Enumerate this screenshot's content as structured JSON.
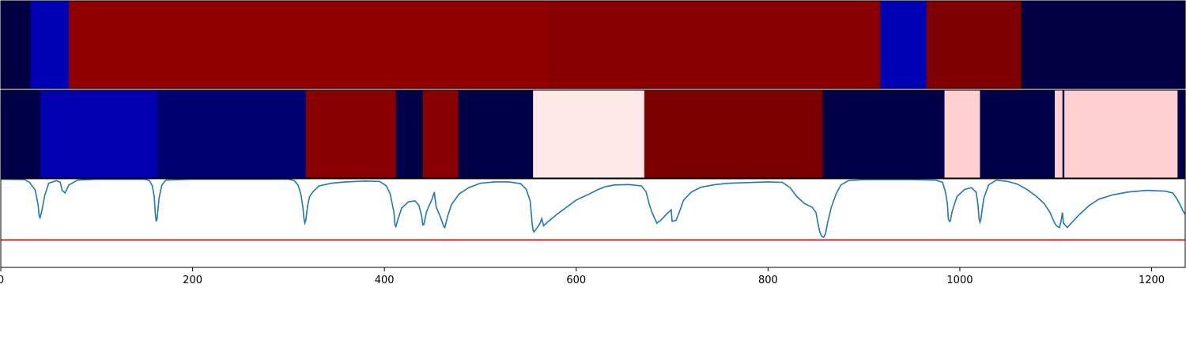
{
  "chart_data": [
    {
      "type": "heatmap",
      "panel": "top",
      "xlim": [
        0,
        1235
      ],
      "segments": [
        {
          "start": 0,
          "end": 31,
          "color": "#000043"
        },
        {
          "start": 31,
          "end": 71,
          "color": "#0000b4"
        },
        {
          "start": 71,
          "end": 570,
          "color": "#900000"
        },
        {
          "start": 570,
          "end": 917,
          "color": "#880000"
        },
        {
          "start": 917,
          "end": 965,
          "color": "#0000b4"
        },
        {
          "start": 965,
          "end": 1064,
          "color": "#7f0000"
        },
        {
          "start": 1064,
          "end": 1235,
          "color": "#000043"
        }
      ]
    },
    {
      "type": "heatmap",
      "panel": "middle",
      "xlim": [
        0,
        1235
      ],
      "segments": [
        {
          "start": 0,
          "end": 41,
          "color": "#000048"
        },
        {
          "start": 41,
          "end": 163,
          "color": "#0000b0"
        },
        {
          "start": 163,
          "end": 318,
          "color": "#000070"
        },
        {
          "start": 318,
          "end": 412,
          "color": "#880000"
        },
        {
          "start": 412,
          "end": 440,
          "color": "#000048"
        },
        {
          "start": 440,
          "end": 477,
          "color": "#880000"
        },
        {
          "start": 477,
          "end": 555,
          "color": "#000048"
        },
        {
          "start": 555,
          "end": 671,
          "color": "#ffe8e8"
        },
        {
          "start": 671,
          "end": 857,
          "color": "#7d0000"
        },
        {
          "start": 857,
          "end": 984,
          "color": "#000048"
        },
        {
          "start": 984,
          "end": 1021,
          "color": "#ffd0d0"
        },
        {
          "start": 1021,
          "end": 1099,
          "color": "#000048"
        },
        {
          "start": 1099,
          "end": 1107,
          "color": "#ffd0d0"
        },
        {
          "start": 1107,
          "end": 1109,
          "color": "#000048"
        },
        {
          "start": 1109,
          "end": 1227,
          "color": "#ffd0d0"
        },
        {
          "start": 1227,
          "end": 1235,
          "color": "#000048"
        }
      ]
    },
    {
      "type": "line",
      "panel": "bottom",
      "xlim": [
        0,
        1235
      ],
      "ylim": [
        0,
        1
      ],
      "xticks": [
        0,
        200,
        400,
        600,
        800,
        1000,
        1200
      ],
      "threshold": {
        "value": 0.31,
        "color": "#dd0000"
      },
      "series": [
        {
          "color": "#1f77b4",
          "points": [
            [
              0,
              0.995
            ],
            [
              25,
              0.99
            ],
            [
              30,
              0.96
            ],
            [
              36,
              0.87
            ],
            [
              39,
              0.7
            ],
            [
              40,
              0.58
            ],
            [
              41,
              0.56
            ],
            [
              43,
              0.65
            ],
            [
              46,
              0.82
            ],
            [
              50,
              0.95
            ],
            [
              58,
              0.98
            ],
            [
              62,
              0.96
            ],
            [
              64,
              0.87
            ],
            [
              67,
              0.84
            ],
            [
              71,
              0.93
            ],
            [
              80,
              0.985
            ],
            [
              100,
              0.995
            ],
            [
              150,
              0.995
            ],
            [
              155,
              0.98
            ],
            [
              158,
              0.92
            ],
            [
              160,
              0.8
            ],
            [
              161,
              0.62
            ],
            [
              162,
              0.52
            ],
            [
              163,
              0.55
            ],
            [
              165,
              0.78
            ],
            [
              168,
              0.93
            ],
            [
              172,
              0.985
            ],
            [
              200,
              0.995
            ],
            [
              300,
              0.995
            ],
            [
              306,
              0.98
            ],
            [
              310,
              0.93
            ],
            [
              313,
              0.82
            ],
            [
              315,
              0.68
            ],
            [
              316,
              0.56
            ],
            [
              317,
              0.5
            ],
            [
              318,
              0.53
            ],
            [
              320,
              0.7
            ],
            [
              322,
              0.8
            ],
            [
              326,
              0.86
            ],
            [
              332,
              0.92
            ],
            [
              345,
              0.95
            ],
            [
              360,
              0.965
            ],
            [
              380,
              0.975
            ],
            [
              395,
              0.97
            ],
            [
              402,
              0.92
            ],
            [
              406,
              0.83
            ],
            [
              410,
              0.62
            ],
            [
              411,
              0.48
            ],
            [
              412,
              0.46
            ],
            [
              414,
              0.54
            ],
            [
              418,
              0.67
            ],
            [
              425,
              0.74
            ],
            [
              432,
              0.75
            ],
            [
              436,
              0.7
            ],
            [
              439,
              0.57
            ],
            [
              440,
              0.48
            ],
            [
              441,
              0.48
            ],
            [
              444,
              0.63
            ],
            [
              450,
              0.78
            ],
            [
              452,
              0.85
            ],
            [
              454,
              0.68
            ],
            [
              458,
              0.58
            ],
            [
              460,
              0.52
            ],
            [
              462,
              0.46
            ],
            [
              463,
              0.45
            ],
            [
              466,
              0.58
            ],
            [
              470,
              0.71
            ],
            [
              478,
              0.83
            ],
            [
              488,
              0.9
            ],
            [
              500,
              0.95
            ],
            [
              515,
              0.965
            ],
            [
              530,
              0.965
            ],
            [
              542,
              0.945
            ],
            [
              548,
              0.88
            ],
            [
              552,
              0.75
            ],
            [
              554,
              0.5
            ],
            [
              555,
              0.42
            ],
            [
              556,
              0.4
            ],
            [
              558,
              0.43
            ],
            [
              562,
              0.49
            ],
            [
              564,
              0.55
            ],
            [
              566,
              0.47
            ],
            [
              570,
              0.51
            ],
            [
              580,
              0.6
            ],
            [
              590,
              0.68
            ],
            [
              600,
              0.76
            ],
            [
              612,
              0.82
            ],
            [
              622,
              0.875
            ],
            [
              630,
              0.91
            ],
            [
              640,
              0.93
            ],
            [
              655,
              0.935
            ],
            [
              668,
              0.92
            ],
            [
              673,
              0.85
            ],
            [
              676,
              0.72
            ],
            [
              679,
              0.62
            ],
            [
              682,
              0.55
            ],
            [
              684,
              0.5
            ],
            [
              688,
              0.53
            ],
            [
              695,
              0.61
            ],
            [
              699,
              0.65
            ],
            [
              700,
              0.52
            ],
            [
              704,
              0.53
            ],
            [
              707,
              0.61
            ],
            [
              712,
              0.76
            ],
            [
              720,
              0.85
            ],
            [
              730,
              0.905
            ],
            [
              745,
              0.935
            ],
            [
              760,
              0.95
            ],
            [
              800,
              0.965
            ],
            [
              815,
              0.96
            ],
            [
              823,
              0.9
            ],
            [
              830,
              0.8
            ],
            [
              838,
              0.72
            ],
            [
              846,
              0.68
            ],
            [
              850,
              0.62
            ],
            [
              852,
              0.5
            ],
            [
              854,
              0.4
            ],
            [
              856,
              0.35
            ],
            [
              858,
              0.34
            ],
            [
              860,
              0.38
            ],
            [
              862,
              0.5
            ],
            [
              866,
              0.68
            ],
            [
              871,
              0.83
            ],
            [
              876,
              0.93
            ],
            [
              884,
              0.98
            ],
            [
              900,
              0.99
            ],
            [
              950,
              0.99
            ],
            [
              975,
              0.985
            ],
            [
              982,
              0.96
            ],
            [
              985,
              0.85
            ],
            [
              987,
              0.72
            ],
            [
              988,
              0.55
            ],
            [
              989,
              0.52
            ],
            [
              990,
              0.52
            ],
            [
              992,
              0.63
            ],
            [
              997,
              0.8
            ],
            [
              1005,
              0.88
            ],
            [
              1012,
              0.9
            ],
            [
              1017,
              0.85
            ],
            [
              1019,
              0.7
            ],
            [
              1020,
              0.55
            ],
            [
              1021,
              0.51
            ],
            [
              1022,
              0.55
            ],
            [
              1025,
              0.78
            ],
            [
              1030,
              0.93
            ],
            [
              1038,
              0.985
            ],
            [
              1050,
              0.97
            ],
            [
              1060,
              0.94
            ],
            [
              1070,
              0.88
            ],
            [
              1080,
              0.8
            ],
            [
              1088,
              0.72
            ],
            [
              1094,
              0.62
            ],
            [
              1098,
              0.52
            ],
            [
              1100,
              0.48
            ],
            [
              1102,
              0.46
            ],
            [
              1104,
              0.45
            ],
            [
              1106,
              0.55
            ],
            [
              1107,
              0.62
            ],
            [
              1108,
              0.5
            ],
            [
              1112,
              0.45
            ],
            [
              1118,
              0.52
            ],
            [
              1125,
              0.6
            ],
            [
              1135,
              0.7
            ],
            [
              1145,
              0.77
            ],
            [
              1160,
              0.82
            ],
            [
              1175,
              0.85
            ],
            [
              1195,
              0.87
            ],
            [
              1215,
              0.86
            ],
            [
              1222,
              0.84
            ],
            [
              1226,
              0.78
            ],
            [
              1230,
              0.7
            ],
            [
              1233,
              0.63
            ],
            [
              1235,
              0.6
            ]
          ]
        }
      ]
    }
  ]
}
